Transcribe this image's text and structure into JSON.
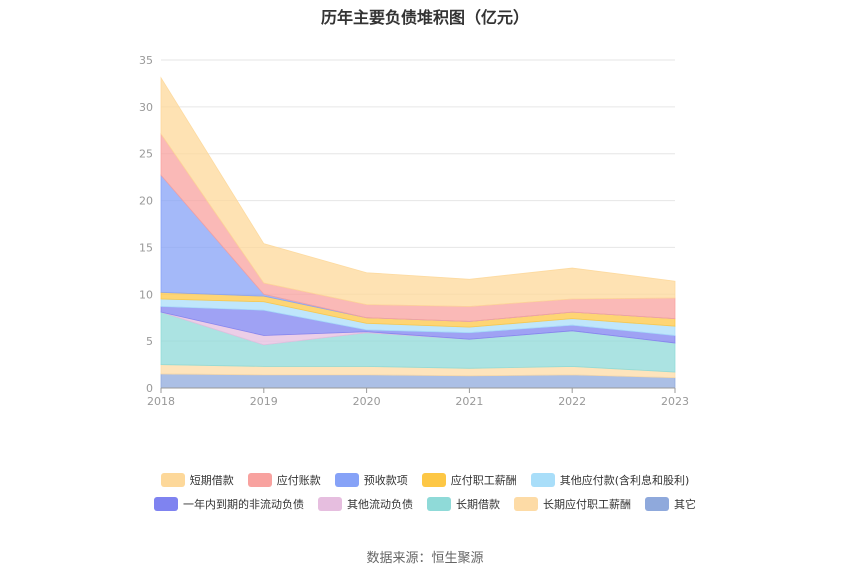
{
  "chart_data": {
    "type": "area",
    "stacked": true,
    "title": "历年主要负债堆积图（亿元）",
    "x": [
      "2018",
      "2019",
      "2020",
      "2021",
      "2022",
      "2023"
    ],
    "ylim": [
      0,
      35
    ],
    "yticks": [
      "0",
      "5",
      "10",
      "15",
      "20",
      "25",
      "30",
      "35"
    ],
    "grid": true,
    "legend_position": "bottom",
    "series": [
      {
        "name": "其它",
        "color": "#8fa9dc",
        "values": [
          1.5,
          1.4,
          1.4,
          1.3,
          1.4,
          1.1
        ]
      },
      {
        "name": "长期应付职工薪酬",
        "color": "#fddba6",
        "values": [
          1.0,
          0.9,
          0.9,
          0.8,
          0.9,
          0.6
        ]
      },
      {
        "name": "长期借款",
        "color": "#8fdad8",
        "values": [
          5.6,
          2.3,
          3.6,
          3.1,
          3.8,
          3.1
        ]
      },
      {
        "name": "其他流动负债",
        "color": "#e6bedf",
        "values": [
          0.0,
          1.0,
          0.1,
          0.0,
          0.0,
          0.0
        ]
      },
      {
        "name": "一年内到期的非流动负债",
        "color": "#7f83f0",
        "values": [
          0.6,
          2.7,
          0.2,
          0.7,
          0.6,
          0.8
        ]
      },
      {
        "name": "其他应付款(含利息和股利)",
        "color": "#a9def9",
        "values": [
          0.8,
          0.9,
          0.7,
          0.6,
          0.7,
          1.0
        ]
      },
      {
        "name": "应付职工薪酬",
        "color": "#fdc745",
        "values": [
          0.7,
          0.6,
          0.6,
          0.6,
          0.7,
          0.8
        ]
      },
      {
        "name": "预收款项",
        "color": "#86a2f7",
        "values": [
          12.5,
          0.2,
          0.0,
          0.0,
          0.0,
          0.0
        ]
      },
      {
        "name": "应付账款",
        "color": "#f8a29f",
        "values": [
          4.4,
          1.2,
          1.4,
          1.6,
          1.4,
          2.2
        ]
      },
      {
        "name": "短期借款",
        "color": "#fdd89a",
        "values": [
          6.0,
          4.2,
          3.4,
          2.9,
          3.3,
          1.8
        ]
      }
    ],
    "legend_rows": [
      [
        "短期借款",
        "应付账款",
        "预收款项",
        "应付职工薪酬",
        "其他应付款(含利息和股利)"
      ],
      [
        "一年内到期的非流动负债",
        "其他流动负债",
        "长期借款",
        "长期应付职工薪酬",
        "其它"
      ]
    ]
  },
  "source": "数据来源：恒生聚源"
}
